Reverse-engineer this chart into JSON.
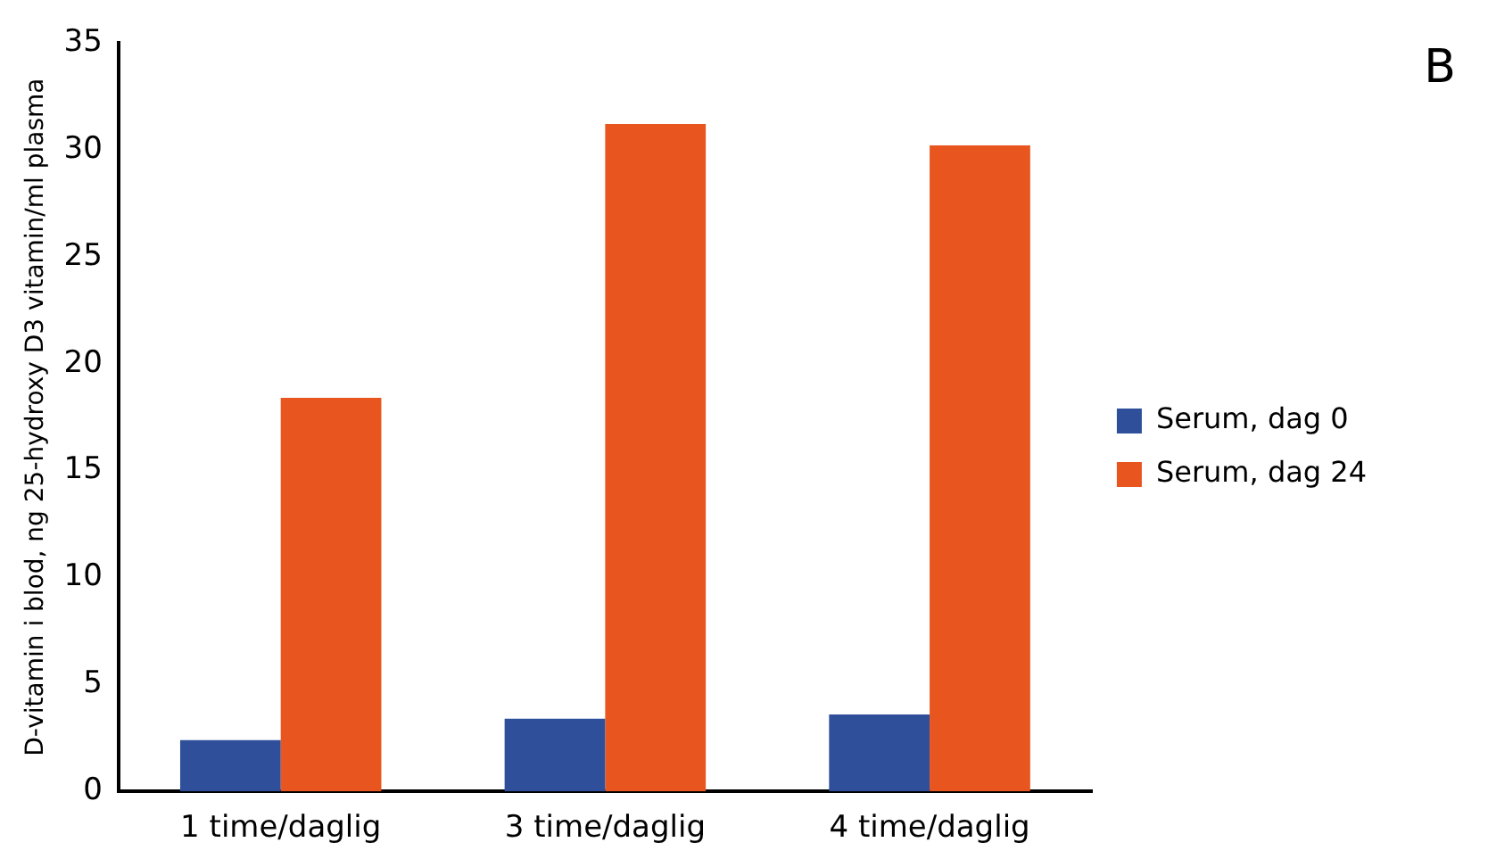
{
  "chart_data": {
    "type": "bar",
    "ylabel": "D-vitamin i blod, ng 25-hydroxy D3 vitamin/ml plasma",
    "annotations": [
      "B"
    ],
    "categories": [
      "1 time/daglig",
      "3 time/daglig",
      "4 time/daglig"
    ],
    "series": [
      {
        "name": "Serum, dag 0",
        "color": "#2f4f9a",
        "values": [
          2.4,
          3.4,
          3.6
        ]
      },
      {
        "name": "Serum, dag 24",
        "color": "#e8551e",
        "values": [
          18.4,
          31.2,
          30.2
        ]
      }
    ],
    "ylim": [
      0,
      35
    ],
    "yticks": [
      0,
      5,
      10,
      15,
      20,
      25,
      30,
      35
    ],
    "legend": "right"
  }
}
